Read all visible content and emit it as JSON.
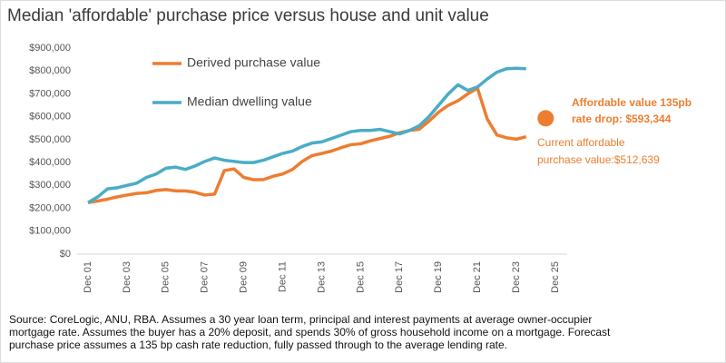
{
  "chart_data": {
    "type": "line",
    "title": "Median 'affordable' purchase price versus house and unit value",
    "x": [
      "2001-12",
      "2002-06",
      "2002-12",
      "2003-06",
      "2003-12",
      "2004-06",
      "2004-12",
      "2005-06",
      "2005-12",
      "2006-06",
      "2006-12",
      "2007-06",
      "2007-12",
      "2008-06",
      "2008-12",
      "2009-06",
      "2009-12",
      "2010-06",
      "2010-12",
      "2011-06",
      "2011-12",
      "2012-06",
      "2012-12",
      "2013-06",
      "2013-12",
      "2014-06",
      "2014-12",
      "2015-06",
      "2015-12",
      "2016-06",
      "2016-12",
      "2017-06",
      "2017-12",
      "2018-06",
      "2018-12",
      "2019-06",
      "2019-12",
      "2020-06",
      "2020-12",
      "2021-06",
      "2021-12",
      "2022-06",
      "2022-12",
      "2023-06",
      "2023-12",
      "2024-06"
    ],
    "series": [
      {
        "name": "Derived purchase value",
        "color": "#ed7d31",
        "values": [
          225000,
          232000,
          240000,
          250000,
          258000,
          265000,
          268000,
          278000,
          282000,
          276000,
          276000,
          270000,
          258000,
          262000,
          365000,
          372000,
          335000,
          325000,
          325000,
          340000,
          350000,
          370000,
          405000,
          430000,
          440000,
          450000,
          465000,
          478000,
          482000,
          495000,
          505000,
          515000,
          530000,
          540000,
          545000,
          580000,
          620000,
          650000,
          670000,
          700000,
          725000,
          590000,
          520000,
          508000,
          502000,
          512639
        ]
      },
      {
        "name": "Median dwelling value",
        "color": "#4bacc6",
        "values": [
          225000,
          250000,
          285000,
          290000,
          300000,
          310000,
          335000,
          350000,
          375000,
          380000,
          370000,
          385000,
          405000,
          420000,
          410000,
          405000,
          400000,
          400000,
          410000,
          425000,
          440000,
          450000,
          470000,
          485000,
          490000,
          505000,
          520000,
          535000,
          540000,
          540000,
          545000,
          535000,
          525000,
          540000,
          560000,
          600000,
          650000,
          700000,
          740000,
          715000,
          730000,
          765000,
          795000,
          810000,
          812000,
          810000
        ]
      }
    ],
    "forecast_point": {
      "x": "2025-06",
      "value": 593344,
      "color": "#ed7d31",
      "label": [
        "Affordable value 135pb",
        "rate drop: $593,344"
      ]
    },
    "current_label": [
      "Current affordable",
      "purchase value:$512,639"
    ],
    "xlim": [
      "2001-12",
      "2025-12"
    ],
    "xticks": [
      {
        "value": "2001-12",
        "label": "Dec 01"
      },
      {
        "value": "2003-12",
        "label": "Dec 03"
      },
      {
        "value": "2005-12",
        "label": "Dec 05"
      },
      {
        "value": "2007-12",
        "label": "Dec 07"
      },
      {
        "value": "2009-12",
        "label": "Dec 09"
      },
      {
        "value": "2011-12",
        "label": "Dec 11"
      },
      {
        "value": "2013-12",
        "label": "Dec 13"
      },
      {
        "value": "2015-12",
        "label": "Dec 15"
      },
      {
        "value": "2017-12",
        "label": "Dec 17"
      },
      {
        "value": "2019-12",
        "label": "Dec 19"
      },
      {
        "value": "2021-12",
        "label": "Dec 21"
      },
      {
        "value": "2023-12",
        "label": "Dec 23"
      },
      {
        "value": "2025-12",
        "label": "Dec 25"
      }
    ],
    "ylim": [
      0,
      900000
    ],
    "yticks": [
      {
        "value": 0,
        "label": "$0"
      },
      {
        "value": 100000,
        "label": "$100,000"
      },
      {
        "value": 200000,
        "label": "$200,000"
      },
      {
        "value": 300000,
        "label": "$300,000"
      },
      {
        "value": 400000,
        "label": "$400,000"
      },
      {
        "value": 500000,
        "label": "$500,000"
      },
      {
        "value": 600000,
        "label": "$600,000"
      },
      {
        "value": 700000,
        "label": "$700,000"
      },
      {
        "value": 800000,
        "label": "$800,000"
      },
      {
        "value": 900000,
        "label": "$900,000"
      }
    ],
    "grid": false,
    "footnote": [
      "Source: CoreLogic, ANU, RBA. Assumes a 30 year loan term, principal and interest payments at average owner-occupier",
      "mortgage rate. Assumes the buyer has a 20% deposit, and spends 30% of gross household income on a mortgage. Forecast",
      "purchase price assumes a 135 bp cash rate reduction, fully passed through to the average lending rate."
    ]
  }
}
